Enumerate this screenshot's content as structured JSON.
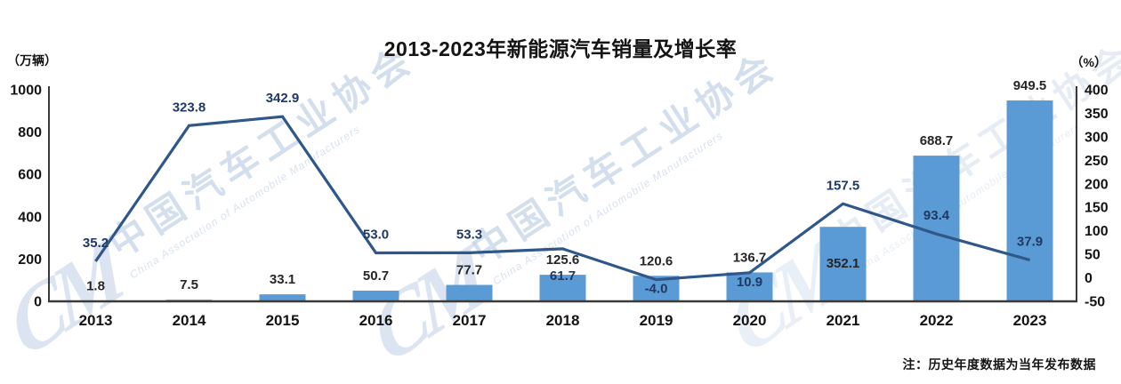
{
  "title": "2013-2023年新能源汽车销量及增长率",
  "note": "注：历史年度数据为当年发布数据",
  "watermark": {
    "logo": "CM",
    "cn": "中国汽车工业协会",
    "en": "China Association of Automobile Manufacturers"
  },
  "chart_data": {
    "type": "combo",
    "title": "2013-2023年新能源汽车销量及增长率",
    "categories": [
      "2013",
      "2014",
      "2015",
      "2016",
      "2017",
      "2018",
      "2019",
      "2020",
      "2021",
      "2022",
      "2023"
    ],
    "series": [
      {
        "name": "新能源汽车销量",
        "type": "bar",
        "axis": "left",
        "unit": "万辆",
        "values": [
          1.8,
          7.5,
          33.1,
          50.7,
          77.7,
          125.6,
          120.6,
          136.7,
          352.1,
          688.7,
          949.5
        ],
        "labels": [
          "1.8",
          "7.5",
          "33.1",
          "50.7",
          "77.7",
          "125.6",
          "120.6",
          "136.7",
          "352.1",
          "688.7",
          "949.5"
        ]
      },
      {
        "name": "增长率",
        "type": "line",
        "axis": "right",
        "unit": "%",
        "values": [
          35.2,
          323.8,
          342.9,
          53.0,
          53.3,
          61.7,
          -4.0,
          10.9,
          157.5,
          93.4,
          37.9
        ],
        "labels": [
          "35.2",
          "323.8",
          "342.9",
          "53.0",
          "53.3",
          "61.7",
          "-4.0",
          "10.9",
          "157.5",
          "93.4",
          "37.9"
        ]
      }
    ],
    "left_axis": {
      "unit_label": "（万辆）",
      "min": 0,
      "max": 1000,
      "ticks": [
        1000,
        800,
        600,
        400,
        200,
        0
      ]
    },
    "right_axis": {
      "unit_label": "（%）",
      "min": -50,
      "max": 400,
      "ticks": [
        400,
        350,
        300,
        250,
        200,
        150,
        100,
        50,
        0,
        -50
      ]
    },
    "grid": false,
    "legend": "none",
    "colors": {
      "bar": "#5B9BD5",
      "line": "#2F578A",
      "bar_label": "#262626",
      "line_label": "#1F3864",
      "axis": "#3A3A3A",
      "tick_label": "#141414",
      "year_label": "#141414"
    },
    "label_offsets": {
      "bar_dy": [
        -12,
        -12,
        -12,
        -12,
        -12,
        -12,
        -12,
        -12,
        46,
        -12,
        -12
      ],
      "line_dy": [
        -16,
        -16,
        -16,
        -16,
        -16,
        35,
        15,
        15,
        -16,
        -16,
        -16
      ]
    }
  }
}
